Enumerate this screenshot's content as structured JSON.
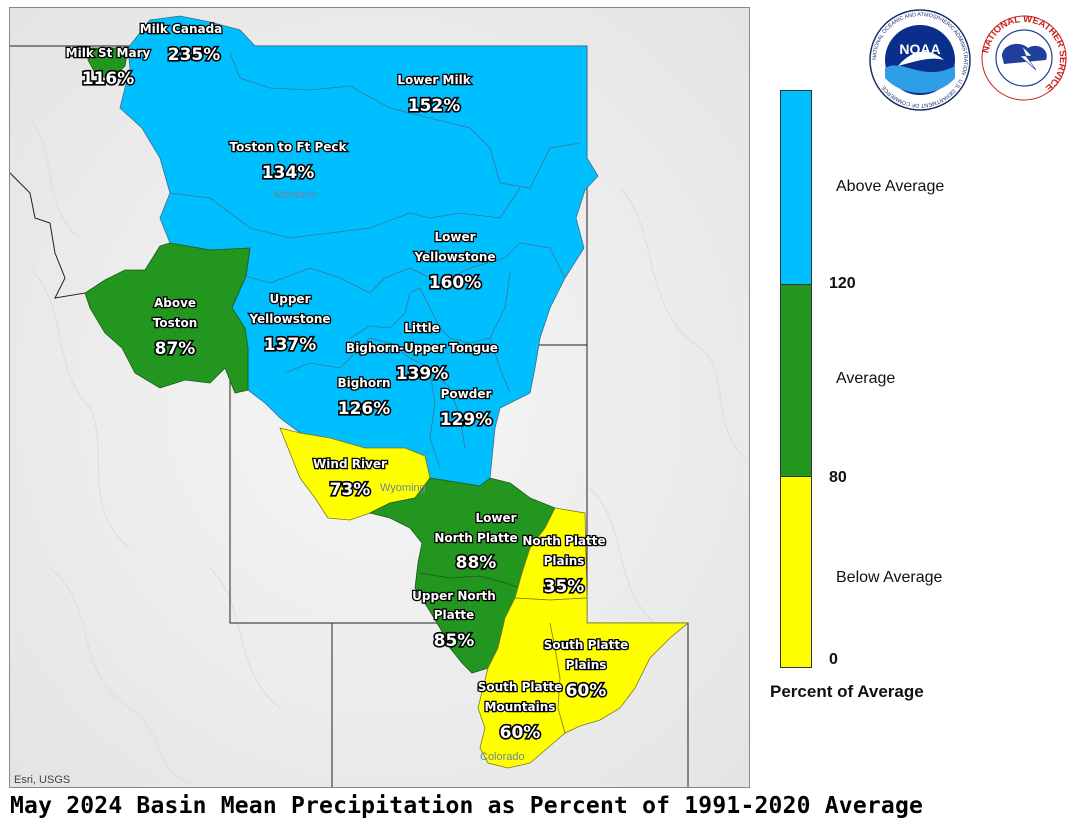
{
  "title": "May 2024 Basin Mean Precipitation as Percent of 1991-2020 Average",
  "credit": "Esri, USGS",
  "states": [
    "Montana",
    "Wyoming",
    "Colorado"
  ],
  "legend": {
    "title": "Percent of Average",
    "classes": [
      {
        "label": "Above Average",
        "color": "#00BFFF"
      },
      {
        "label": "Average",
        "color": "#22961E"
      },
      {
        "label": "Below Average",
        "color": "#FFFF00"
      }
    ],
    "breaks": [
      "120",
      "80",
      "0"
    ]
  },
  "logos": {
    "noaa": {
      "text": "NOAA",
      "ring_text": "NATIONAL OCEANIC AND ATMOSPHERIC ADMINISTRATION · U.S. DEPARTMENT OF COMMERCE"
    },
    "nws": {
      "ring_text": "NATIONAL WEATHER SERVICE"
    }
  },
  "basins": [
    {
      "name": "Milk Canada",
      "pct": "235%",
      "class": "Above Average"
    },
    {
      "name": "Milk St Mary",
      "pct": "116%",
      "class": "Average"
    },
    {
      "name": "Lower Milk",
      "pct": "152%",
      "class": "Above Average"
    },
    {
      "name": "Toston to Ft Peck",
      "pct": "134%",
      "class": "Above Average"
    },
    {
      "name": "Lower Yellowstone",
      "pct": "160%",
      "class": "Above Average"
    },
    {
      "name": "Above Toston",
      "pct": "87%",
      "class": "Average"
    },
    {
      "name": "Upper Yellowstone",
      "pct": "137%",
      "class": "Above Average"
    },
    {
      "name": "Little Bighorn-Upper Tongue",
      "pct": "139%",
      "class": "Above Average"
    },
    {
      "name": "Bighorn",
      "pct": "126%",
      "class": "Above Average"
    },
    {
      "name": "Powder",
      "pct": "129%",
      "class": "Above Average"
    },
    {
      "name": "Wind River",
      "pct": "73%",
      "class": "Below Average"
    },
    {
      "name": "Lower North Platte",
      "pct": "88%",
      "class": "Average"
    },
    {
      "name": "North Platte Plains",
      "pct": "35%",
      "class": "Below Average"
    },
    {
      "name": "Upper North Platte",
      "pct": "85%",
      "class": "Average"
    },
    {
      "name": "South Platte Plains",
      "pct": "60%",
      "class": "Below Average"
    },
    {
      "name": "South Platte Mountains",
      "pct": "60%",
      "class": "Below Average"
    }
  ]
}
